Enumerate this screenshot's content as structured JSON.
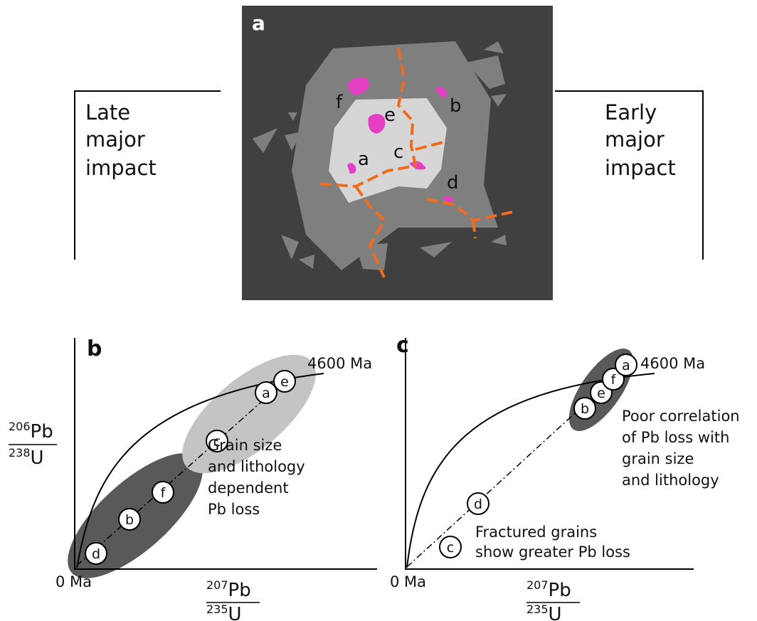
{
  "panel_a": {
    "label": "a",
    "grain_labels": [
      "f",
      "e",
      "b",
      "a",
      "c",
      "d"
    ]
  },
  "left_label": {
    "lines": [
      "Late",
      "major",
      "impact"
    ]
  },
  "right_label": {
    "lines": [
      "Early",
      "major",
      "impact"
    ]
  },
  "panel_b": {
    "label": "b",
    "upper_label": "4600 Ma",
    "origin_label": "0 Ma",
    "points": [
      "d",
      "b",
      "f",
      "c",
      "a",
      "e"
    ],
    "note": [
      "Grain size",
      "and lithology",
      "dependent",
      "Pb loss"
    ]
  },
  "panel_c": {
    "label": "c",
    "upper_label": "4600 Ma",
    "origin_label": "0 Ma",
    "points": [
      "c",
      "d",
      "b",
      "e",
      "f",
      "a"
    ],
    "note": [
      "Poor correlation",
      "of Pb loss with",
      "grain size",
      "and lithology"
    ],
    "note2": [
      "Fractured grains",
      "show greater Pb loss"
    ]
  },
  "y_axis_label": {
    "numerator_mass": "206",
    "numerator_element": "Pb",
    "denominator_mass": "238",
    "denominator_element": "U"
  },
  "x_axis_label": {
    "numerator_mass": "207",
    "numerator_element": "Pb",
    "denominator_mass": "235",
    "denominator_element": "U"
  }
}
